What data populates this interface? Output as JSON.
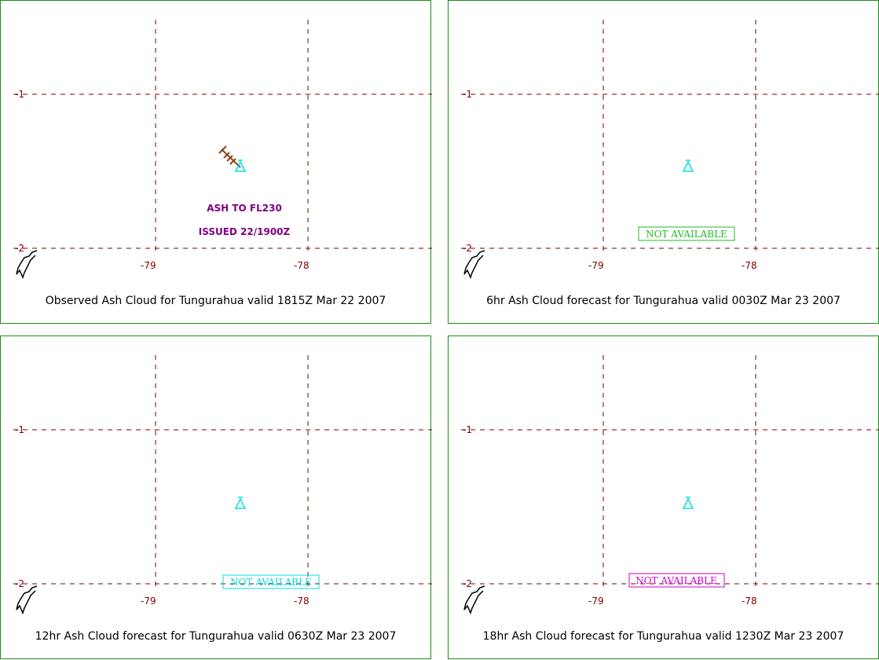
{
  "panels": [
    {
      "caption": "Observed Ash Cloud for Tungurahua valid 1815Z Mar 22 2007",
      "notice": "",
      "notice_color": "",
      "ash_lines": [
        "ASH TO FL230",
        "ISSUED 22/1900Z"
      ],
      "has_ash_cloud": true
    },
    {
      "caption": "6hr Ash Cloud forecast for Tungurahua valid 0030Z Mar 23 2007",
      "notice": "NOT AVAILABLE",
      "notice_color": "#22bb22",
      "ash_lines": [],
      "has_ash_cloud": false
    },
    {
      "caption": "12hr Ash Cloud forecast for Tungurahua valid 0630Z Mar 23 2007",
      "notice": "NOT AVAILABLE",
      "notice_color": "#00e0e0",
      "ash_lines": [],
      "has_ash_cloud": false
    },
    {
      "caption": "18hr Ash Cloud forecast for Tungurahua valid 1230Z Mar 23 2007",
      "notice": "NOT AVAILABLE",
      "notice_color": "#cc00cc",
      "ash_lines": [],
      "has_ash_cloud": false
    }
  ],
  "grid": {
    "lon_labels": [
      "-79",
      "-78"
    ],
    "lat_labels": [
      "-1",
      "-2"
    ]
  },
  "colors": {
    "border": "#1e8a1e",
    "grid": "#7a0000",
    "volcano": "#00e0e0",
    "ash_cloud": "#8b4513",
    "coast": "#000000"
  },
  "icons": {
    "volcano": "volcano-triangle-icon"
  }
}
